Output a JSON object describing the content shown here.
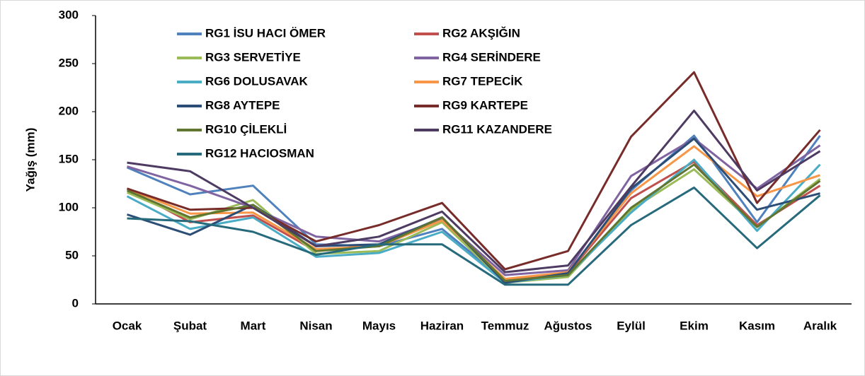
{
  "chart_data": {
    "type": "line",
    "ylabel": "Yağış (mm)",
    "categories": [
      "Ocak",
      "Şubat",
      "Mart",
      "Nisan",
      "Mayıs",
      "Haziran",
      "Temmuz",
      "Ağustos",
      "Eylül",
      "Ekim",
      "Kasım",
      "Aralık"
    ],
    "ylim": [
      0,
      300
    ],
    "yticks": [
      0,
      50,
      100,
      150,
      200,
      250,
      300
    ],
    "grid": false,
    "legend": "top",
    "series": [
      {
        "name": "RG1 İSU HACI ÖMER",
        "color": "#4f81bd",
        "values": [
          142,
          114,
          123,
          62,
          60,
          78,
          24,
          32,
          118,
          175,
          85,
          175
        ]
      },
      {
        "name": "RG2 AKŞIĞIN",
        "color": "#c0504d",
        "values": [
          120,
          85,
          92,
          55,
          62,
          88,
          25,
          32,
          110,
          148,
          82,
          123
        ]
      },
      {
        "name": "RG3 SERVETİYE",
        "color": "#9bbb59",
        "values": [
          116,
          88,
          108,
          52,
          55,
          85,
          22,
          28,
          98,
          140,
          80,
          130
        ]
      },
      {
        "name": "RG4 SERİNDERE",
        "color": "#8064a2",
        "values": [
          143,
          123,
          100,
          70,
          65,
          88,
          30,
          35,
          133,
          172,
          120,
          165
        ]
      },
      {
        "name": "RG6 DOLUSAVAK",
        "color": "#4bacc6",
        "values": [
          112,
          78,
          90,
          49,
          53,
          75,
          22,
          30,
          95,
          150,
          76,
          145
        ]
      },
      {
        "name": "RG7 TEPECİK",
        "color": "#f79646",
        "values": [
          120,
          94,
          95,
          57,
          60,
          87,
          26,
          33,
          115,
          164,
          112,
          134
        ]
      },
      {
        "name": "RG8 AYTEPE",
        "color": "#2c4d75",
        "values": [
          93,
          72,
          103,
          60,
          62,
          90,
          22,
          32,
          120,
          172,
          98,
          115
        ]
      },
      {
        "name": "RG9 KARTEPE",
        "color": "#772c2a",
        "values": [
          120,
          98,
          100,
          65,
          82,
          105,
          36,
          55,
          174,
          241,
          105,
          181
        ]
      },
      {
        "name": "RG10 ÇİLEKLİ",
        "color": "#5f7530",
        "values": [
          118,
          90,
          103,
          55,
          60,
          90,
          24,
          30,
          100,
          145,
          80,
          128
        ]
      },
      {
        "name": "RG11 KAZANDERE",
        "color": "#4d3b62",
        "values": [
          147,
          138,
          100,
          60,
          70,
          96,
          33,
          40,
          122,
          201,
          118,
          159
        ]
      },
      {
        "name": "RG12 HACIOSMAN",
        "color": "#276a7c",
        "values": [
          89,
          86,
          75,
          51,
          62,
          62,
          20,
          20,
          82,
          121,
          58,
          113
        ]
      }
    ]
  }
}
